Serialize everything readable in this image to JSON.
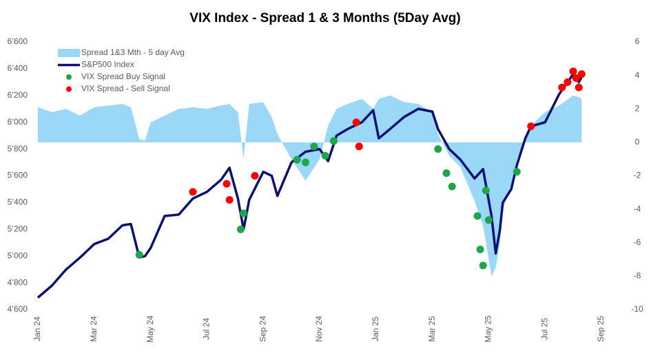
{
  "chart_data": {
    "type": "combo",
    "title": "VIX Index - Spread 1 & 3 Months (5Day Avg)",
    "xlim": [
      0,
      20
    ],
    "xticks": [
      {
        "value": 0,
        "label": "Jan 24"
      },
      {
        "value": 2,
        "label": "Mar 24"
      },
      {
        "value": 4,
        "label": "May 24"
      },
      {
        "value": 6,
        "label": "Jul 24"
      },
      {
        "value": 8,
        "label": "Sep 24"
      },
      {
        "value": 10,
        "label": "Nov 24"
      },
      {
        "value": 12,
        "label": "Jan 25"
      },
      {
        "value": 14,
        "label": "Mar 25"
      },
      {
        "value": 16,
        "label": "May 25"
      },
      {
        "value": 18,
        "label": "Jul 25"
      },
      {
        "value": 20,
        "label": "Sep 25"
      }
    ],
    "ylim": [
      4600,
      6600
    ],
    "yticks": [
      {
        "value": 4600,
        "label": "4’600"
      },
      {
        "value": 4800,
        "label": "4’800"
      },
      {
        "value": 5000,
        "label": "5’000"
      },
      {
        "value": 5200,
        "label": "5’200"
      },
      {
        "value": 5400,
        "label": "5’400"
      },
      {
        "value": 5600,
        "label": "5’600"
      },
      {
        "value": 5800,
        "label": "5’800"
      },
      {
        "value": 6000,
        "label": "6’000"
      },
      {
        "value": 6200,
        "label": "6’200"
      },
      {
        "value": 6400,
        "label": "6’400"
      },
      {
        "value": 6600,
        "label": "6’600"
      }
    ],
    "y2lim": [
      -10,
      6
    ],
    "y2ticks": [
      -10,
      -8,
      -6,
      -4,
      -2,
      0,
      2,
      4,
      6
    ],
    "legend": "upper left",
    "series": [
      {
        "name": "Spread 1&3 Mth - 5 day Avg",
        "kind": "area",
        "axis": "y2",
        "color": "#9bd7f7",
        "x": [
          0,
          0.5,
          1,
          1.5,
          2,
          2.5,
          3,
          3.3,
          3.6,
          3.8,
          4,
          4.5,
          5,
          5.5,
          6,
          6.5,
          6.8,
          7.1,
          7.3,
          7.5,
          8,
          8.3,
          8.5,
          9,
          9.5,
          10,
          10.3,
          10.6,
          11,
          11.5,
          11.9,
          12.1,
          12.5,
          13,
          13.5,
          14,
          14.2,
          14.6,
          15,
          15.5,
          15.8,
          16.1,
          16.25,
          16.4,
          16.5,
          16.8,
          17,
          17.3,
          17.5,
          18,
          18.5,
          19,
          19.2,
          19.3
        ],
        "values": [
          2.1,
          1.8,
          2.0,
          1.6,
          2.1,
          2.2,
          2.3,
          2.1,
          0.2,
          0.1,
          1.2,
          1.6,
          2.0,
          2.1,
          2.0,
          2.2,
          2.3,
          1.8,
          -1.0,
          2.3,
          2.4,
          1.5,
          0.5,
          -1.0,
          -2.3,
          -1.0,
          1.0,
          2.0,
          2.3,
          2.6,
          2.0,
          2.6,
          2.8,
          2.4,
          2.3,
          1.8,
          0.5,
          -0.8,
          -1.5,
          -3.5,
          -5.0,
          -8.0,
          -7.5,
          -6.0,
          -4.0,
          -2.5,
          -1.0,
          0.1,
          1.0,
          1.8,
          2.2,
          2.8,
          2.7,
          2.6
        ]
      },
      {
        "name": "S&P500 Index",
        "kind": "line",
        "axis": "y",
        "color": "#0a1172",
        "x": [
          0,
          0.5,
          1,
          1.5,
          2,
          2.5,
          3,
          3.3,
          3.6,
          3.8,
          4,
          4.5,
          5,
          5.5,
          6,
          6.5,
          6.8,
          7.1,
          7.3,
          7.5,
          8,
          8.3,
          8.5,
          9,
          9.5,
          10,
          10.3,
          10.6,
          11,
          11.5,
          11.9,
          12.1,
          12.5,
          13,
          13.5,
          14,
          14.2,
          14.6,
          15,
          15.5,
          15.8,
          16.1,
          16.25,
          16.4,
          16.5,
          16.8,
          17,
          17.3,
          17.5,
          18,
          18.5,
          19,
          19.2,
          19.3
        ],
        "values": [
          4690,
          4780,
          4900,
          4990,
          5090,
          5130,
          5230,
          5240,
          4990,
          5000,
          5060,
          5300,
          5310,
          5430,
          5480,
          5570,
          5660,
          5430,
          5200,
          5420,
          5630,
          5600,
          5450,
          5700,
          5780,
          5800,
          5710,
          5900,
          5950,
          6000,
          6090,
          5880,
          5950,
          6040,
          6100,
          6080,
          5950,
          5800,
          5720,
          5580,
          5650,
          5300,
          5020,
          5200,
          5400,
          5500,
          5680,
          5880,
          5970,
          6000,
          6210,
          6360,
          6300,
          6340
        ]
      },
      {
        "name": "VIX Spread Buy Signal",
        "kind": "scatter",
        "axis": "y",
        "color": "#1fa64a",
        "x": [
          3.6,
          7.2,
          7.3,
          9.2,
          9.5,
          9.8,
          10.2,
          10.5,
          14.2,
          14.5,
          14.7,
          15.6,
          15.7,
          15.8,
          15.9,
          16.0,
          17.0
        ],
        "values": [
          5010,
          5200,
          5320,
          5720,
          5700,
          5820,
          5750,
          5860,
          5800,
          5620,
          5520,
          5300,
          5050,
          4930,
          5490,
          5270,
          5630
        ]
      },
      {
        "name": "VIX Spread - Sell Signal",
        "kind": "scatter",
        "axis": "y",
        "color": "#ff0000",
        "x": [
          5.5,
          6.7,
          6.8,
          7.7,
          11.3,
          11.4,
          17.5,
          18.6,
          18.8,
          19.0,
          19.1,
          19.2,
          19.3
        ],
        "values": [
          5480,
          5540,
          5420,
          5600,
          6000,
          5820,
          5970,
          6260,
          6300,
          6380,
          6330,
          6260,
          6360
        ]
      }
    ]
  }
}
